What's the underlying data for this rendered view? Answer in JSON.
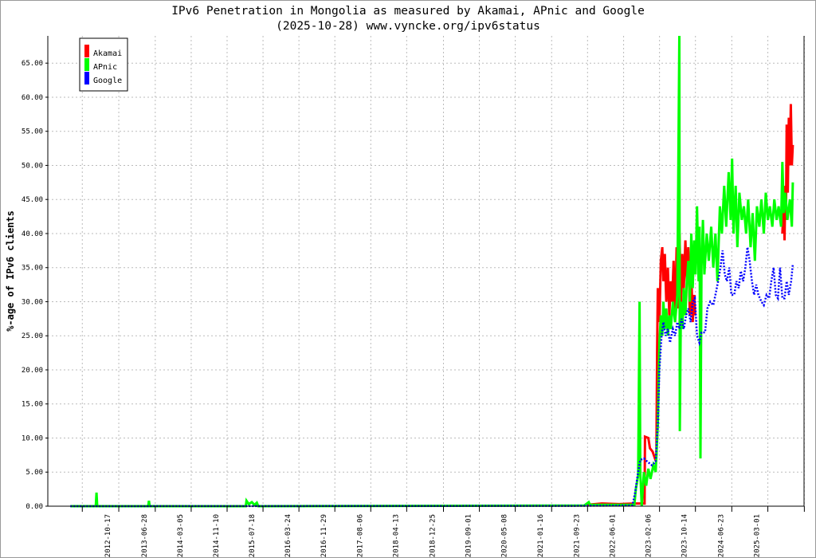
{
  "chart_data": {
    "type": "line",
    "title": "IPv6 Penetration in Mongolia as measured by Akamai, APnic and Google",
    "subtitle": "(2025-10-28) www.vyncke.org/ipv6status",
    "xlabel": "",
    "ylabel": "%-age of IPv6 clients",
    "xlim": [
      "2011-06-11",
      "2025-11-08"
    ],
    "ylim": [
      0,
      69
    ],
    "grid": true,
    "legend_position": "top-left",
    "x_tick_labels": [
      "2012-10-17",
      "2013-06-28",
      "2014-03-05",
      "2014-11-10",
      "2015-07-18",
      "2016-03-24",
      "2016-11-29",
      "2017-08-06",
      "2018-04-13",
      "2018-12-25",
      "2019-09-01",
      "2020-05-08",
      "2021-01-16",
      "2021-09-23",
      "2022-06-01",
      "2023-02-06",
      "2023-10-14",
      "2024-06-23",
      "2025-03-01"
    ],
    "y_tick_labels": [
      "0.00",
      "5.00",
      "10.00",
      "15.00",
      "20.00",
      "25.00",
      "30.00",
      "35.00",
      "40.00",
      "45.00",
      "50.00",
      "55.00",
      "60.00",
      "65.00"
    ],
    "series": [
      {
        "name": "Akamai",
        "color": "#ff0000",
        "style": "solid",
        "points": [
          [
            "2021-09-20",
            0.2
          ],
          [
            "2022-01-01",
            0.4
          ],
          [
            "2022-05-01",
            0.3
          ],
          [
            "2022-08-15",
            0.4
          ],
          [
            "2022-10-25",
            0.4
          ],
          [
            "2022-10-28",
            10.2
          ],
          [
            "2022-11-20",
            10
          ],
          [
            "2022-12-01",
            8.5
          ],
          [
            "2022-12-20",
            8
          ],
          [
            "2023-01-05",
            7
          ],
          [
            "2023-01-15",
            7.5
          ],
          [
            "2023-01-20",
            22.5
          ],
          [
            "2023-01-25",
            32
          ],
          [
            "2023-02-05",
            27
          ],
          [
            "2023-02-15",
            36
          ],
          [
            "2023-02-25",
            38
          ],
          [
            "2023-03-05",
            33
          ],
          [
            "2023-03-15",
            37
          ],
          [
            "2023-03-25",
            30
          ],
          [
            "2023-04-05",
            35
          ],
          [
            "2023-04-15",
            28
          ],
          [
            "2023-04-25",
            33
          ],
          [
            "2023-05-05",
            30
          ],
          [
            "2023-05-15",
            36
          ],
          [
            "2023-05-25",
            27
          ],
          [
            "2023-06-05",
            38
          ],
          [
            "2023-06-15",
            29
          ],
          [
            "2023-06-25",
            40
          ],
          [
            "2023-07-05",
            30
          ],
          [
            "2023-07-15",
            37
          ],
          [
            "2023-07-25",
            32
          ],
          [
            "2023-08-05",
            39
          ],
          [
            "2023-08-15",
            33
          ],
          [
            "2023-08-25",
            38
          ],
          [
            "2023-09-05",
            28
          ],
          [
            "2023-09-15",
            34
          ],
          [
            "2023-09-25",
            27
          ],
          [
            "2023-10-05",
            31
          ],
          [
            "2023-10-12",
            28
          ],
          null,
          [
            "2025-06-10",
            40
          ],
          [
            "2025-06-20",
            45
          ],
          [
            "2025-06-25",
            39
          ],
          [
            "2025-07-01",
            47
          ],
          [
            "2025-07-05",
            42
          ],
          [
            "2025-07-10",
            56
          ],
          [
            "2025-07-18",
            46
          ],
          [
            "2025-07-25",
            57
          ],
          [
            "2025-08-01",
            50
          ],
          [
            "2025-08-08",
            59
          ],
          [
            "2025-08-15",
            50
          ],
          [
            "2025-08-22",
            53
          ]
        ]
      },
      {
        "name": "APnic",
        "color": "#00ff00",
        "style": "solid",
        "points": [
          [
            "2011-11-15",
            0
          ],
          [
            "2012-05-10",
            0
          ],
          [
            "2012-05-15",
            2
          ],
          [
            "2012-05-20",
            0
          ],
          [
            "2013-05-10",
            0
          ],
          [
            "2013-05-15",
            0.8
          ],
          [
            "2013-05-20",
            0
          ],
          [
            "2015-03-20",
            0
          ],
          [
            "2015-03-25",
            0.8
          ],
          [
            "2015-04-10",
            0.3
          ],
          [
            "2015-05-01",
            0.6
          ],
          [
            "2015-05-20",
            0.2
          ],
          [
            "2015-06-05",
            0.5
          ],
          [
            "2015-06-15",
            0
          ],
          [
            "2021-09-01",
            0.1
          ],
          [
            "2021-10-01",
            0.6
          ],
          [
            "2021-10-10",
            0.2
          ],
          [
            "2022-08-15",
            0.2
          ],
          [
            "2022-08-25",
            2.5
          ],
          [
            "2022-09-10",
            4.5
          ],
          [
            "2022-09-20",
            30
          ],
          [
            "2022-09-25",
            5
          ],
          [
            "2022-10-05",
            0
          ],
          [
            "2022-10-20",
            5
          ],
          [
            "2022-11-05",
            3
          ],
          [
            "2022-11-20",
            5.5
          ],
          [
            "2022-12-05",
            4
          ],
          [
            "2022-12-25",
            6
          ],
          [
            "2023-01-10",
            5
          ],
          [
            "2023-01-25",
            12
          ],
          [
            "2023-02-05",
            24
          ],
          [
            "2023-02-15",
            28
          ],
          [
            "2023-02-25",
            25
          ],
          [
            "2023-03-05",
            30
          ],
          [
            "2023-03-15",
            26
          ],
          [
            "2023-03-25",
            29
          ],
          [
            "2023-04-05",
            25
          ],
          [
            "2023-04-15",
            28
          ],
          [
            "2023-04-25",
            26
          ],
          [
            "2023-05-10",
            30
          ],
          [
            "2023-05-25",
            27
          ],
          [
            "2023-06-10",
            31
          ],
          [
            "2023-06-24",
            69
          ],
          [
            "2023-06-27",
            11
          ],
          [
            "2023-07-05",
            30
          ],
          [
            "2023-07-15",
            26
          ],
          [
            "2023-07-25",
            32
          ],
          [
            "2023-08-05",
            28
          ],
          [
            "2023-08-15",
            33
          ],
          [
            "2023-08-25",
            36
          ],
          [
            "2023-09-05",
            30
          ],
          [
            "2023-09-15",
            40
          ],
          [
            "2023-09-25",
            32
          ],
          [
            "2023-10-05",
            39
          ],
          [
            "2023-10-15",
            34
          ],
          [
            "2023-10-25",
            44
          ],
          [
            "2023-11-05",
            33
          ],
          [
            "2023-11-12",
            41
          ],
          [
            "2023-11-18",
            7
          ],
          [
            "2023-11-25",
            35
          ],
          [
            "2023-12-05",
            42
          ],
          [
            "2023-12-15",
            34
          ],
          [
            "2024-01-01",
            40
          ],
          [
            "2024-01-15",
            36
          ],
          [
            "2024-02-01",
            41
          ],
          [
            "2024-02-15",
            35
          ],
          [
            "2024-03-01",
            40
          ],
          [
            "2024-03-15",
            33
          ],
          [
            "2024-04-01",
            44
          ],
          [
            "2024-04-15",
            40
          ],
          [
            "2024-05-01",
            47
          ],
          [
            "2024-05-15",
            41
          ],
          [
            "2024-06-01",
            49
          ],
          [
            "2024-06-15",
            42
          ],
          [
            "2024-06-25",
            51
          ],
          [
            "2024-07-05",
            40
          ],
          [
            "2024-07-20",
            47
          ],
          [
            "2024-08-01",
            38
          ],
          [
            "2024-08-15",
            46
          ],
          [
            "2024-09-01",
            42
          ],
          [
            "2024-09-15",
            44
          ],
          [
            "2024-10-01",
            40
          ],
          [
            "2024-10-15",
            45
          ],
          [
            "2024-11-01",
            38
          ],
          [
            "2024-11-15",
            43
          ],
          [
            "2024-12-01",
            36
          ],
          [
            "2024-12-15",
            44
          ],
          [
            "2025-01-01",
            41
          ],
          [
            "2025-01-15",
            45
          ],
          [
            "2025-02-01",
            40
          ],
          [
            "2025-02-15",
            46
          ],
          [
            "2025-03-01",
            42
          ],
          [
            "2025-03-15",
            44
          ],
          [
            "2025-04-01",
            41
          ],
          [
            "2025-04-15",
            45
          ],
          [
            "2025-05-01",
            42
          ],
          [
            "2025-05-15",
            44
          ],
          [
            "2025-06-01",
            41
          ],
          [
            "2025-06-10",
            50.5
          ],
          [
            "2025-06-20",
            43
          ],
          [
            "2025-07-01",
            46
          ],
          [
            "2025-07-15",
            42
          ],
          [
            "2025-08-01",
            45
          ],
          [
            "2025-08-15",
            41
          ],
          [
            "2025-08-22",
            47.5
          ]
        ]
      },
      {
        "name": "Google",
        "color": "#0000ff",
        "style": "dotted",
        "points": [
          [
            "2011-11-15",
            0
          ],
          [
            "2021-06-01",
            0.05
          ],
          [
            "2022-08-01",
            0.1
          ],
          [
            "2022-08-20",
            2
          ],
          [
            "2022-09-10",
            5
          ],
          [
            "2022-09-25",
            6.8
          ],
          [
            "2022-10-20",
            7
          ],
          [
            "2022-11-15",
            6.5
          ],
          [
            "2022-12-15",
            6
          ],
          [
            "2023-01-10",
            6.5
          ],
          [
            "2023-01-25",
            12
          ],
          [
            "2023-02-05",
            20
          ],
          [
            "2023-02-20",
            25
          ],
          [
            "2023-03-05",
            27
          ],
          [
            "2023-03-20",
            25
          ],
          [
            "2023-04-05",
            26
          ],
          [
            "2023-04-20",
            24
          ],
          [
            "2023-05-10",
            26
          ],
          [
            "2023-05-25",
            25
          ],
          [
            "2023-06-10",
            27
          ],
          [
            "2023-06-25",
            26
          ],
          [
            "2023-07-10",
            27.5
          ],
          [
            "2023-07-25",
            26
          ],
          [
            "2023-08-10",
            28
          ],
          [
            "2023-08-25",
            29
          ],
          [
            "2023-09-10",
            27
          ],
          [
            "2023-09-25",
            30
          ],
          [
            "2023-10-10",
            30.5
          ],
          [
            "2023-10-25",
            25
          ],
          [
            "2023-11-10",
            24
          ],
          [
            "2023-11-25",
            25.5
          ],
          [
            "2023-12-20",
            25.5
          ],
          [
            "2024-01-05",
            29
          ],
          [
            "2024-01-25",
            30
          ],
          [
            "2024-02-15",
            29.5
          ],
          [
            "2024-03-01",
            31
          ],
          [
            "2024-03-20",
            33
          ],
          [
            "2024-04-05",
            35
          ],
          [
            "2024-04-20",
            37.5
          ],
          [
            "2024-05-05",
            34
          ],
          [
            "2024-05-20",
            33
          ],
          [
            "2024-06-05",
            35
          ],
          [
            "2024-06-20",
            31
          ],
          [
            "2024-07-10",
            31
          ],
          [
            "2024-07-25",
            33
          ],
          [
            "2024-08-10",
            32
          ],
          [
            "2024-08-25",
            34.5
          ],
          [
            "2024-09-10",
            33
          ],
          [
            "2024-09-25",
            35
          ],
          [
            "2024-10-10",
            38
          ],
          [
            "2024-10-25",
            36
          ],
          [
            "2024-11-10",
            33
          ],
          [
            "2024-11-25",
            31
          ],
          [
            "2024-12-10",
            32.5
          ],
          [
            "2024-12-25",
            31
          ],
          [
            "2025-01-15",
            30
          ],
          [
            "2025-02-01",
            29.5
          ],
          [
            "2025-02-20",
            31
          ],
          [
            "2025-03-10",
            30.5
          ],
          [
            "2025-03-25",
            33
          ],
          [
            "2025-04-10",
            35
          ],
          [
            "2025-04-25",
            31
          ],
          [
            "2025-05-10",
            30.5
          ],
          [
            "2025-05-25",
            35
          ],
          [
            "2025-06-10",
            30.5
          ],
          [
            "2025-06-25",
            30.5
          ],
          [
            "2025-07-10",
            33
          ],
          [
            "2025-07-25",
            31
          ],
          [
            "2025-08-10",
            33
          ],
          [
            "2025-08-22",
            35.5
          ]
        ]
      }
    ]
  }
}
